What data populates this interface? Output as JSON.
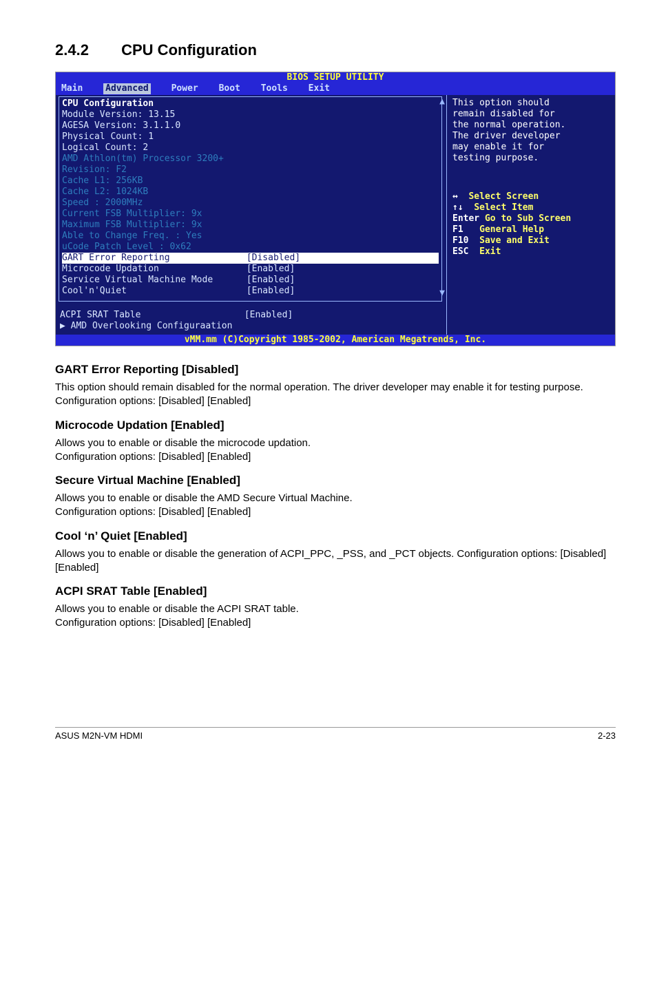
{
  "section": {
    "number": "2.4.2",
    "title": "CPU Configuration"
  },
  "bios": {
    "title": "BIOS SETUP UTILITY",
    "menus": [
      "Main",
      "Advanced",
      "Power",
      "Boot",
      "Tools",
      "Exit"
    ],
    "selected_menu": "Advanced",
    "left": {
      "box_header": "CPU Configuration",
      "static_lines": [
        "Module Version: 13.15",
        "AGESA Version: 3.1.1.0",
        "Physical Count: 1",
        "Logical Count: 2"
      ],
      "dim_lines": [
        "AMD Athlon(tm) Processor 3200+",
        "Revision: F2",
        "Cache L1: 256KB",
        "Cache L2: 1024KB",
        "Speed   : 2000MHz",
        "Current FSB Multiplier: 9x",
        "Maximum FSB Multiplier: 9x",
        "Able to Change Freq.  : Yes",
        "uCode Patch Level     : 0x62"
      ],
      "items": [
        {
          "label": "GART Error Reporting",
          "value": "[Disabled]",
          "selected": true
        },
        {
          "label": "Microcode Updation",
          "value": "[Enabled]",
          "selected": false
        },
        {
          "label": "Service Virtual Machine Mode",
          "value": "[Enabled]",
          "selected": false
        },
        {
          "label": "Cool'n'Quiet",
          "value": "[Enabled]",
          "selected": false
        }
      ],
      "below_items": [
        {
          "label": "ACPI SRAT Table",
          "value": "[Enabled]"
        },
        {
          "label": "▶ AMD Overlooking Configuraation",
          "value": ""
        }
      ]
    },
    "right": {
      "help": [
        "This option should",
        "remain disabled for",
        "the normal operation.",
        "The driver developer",
        "may enable it for",
        "testing purpose."
      ],
      "nav": [
        {
          "k": "↔",
          "t": "Select Screen"
        },
        {
          "k": "↑↓",
          "t": "Select Item"
        },
        {
          "k": "Enter",
          "t": "Go to Sub Screen"
        },
        {
          "k": "F1",
          "t": "General Help"
        },
        {
          "k": "F10",
          "t": "Save and Exit"
        },
        {
          "k": "ESC",
          "t": "Exit"
        }
      ]
    },
    "footer": "vMM.mm (C)Copyright 1985-2002, American Megatrends, Inc."
  },
  "subsections": [
    {
      "h": "GART Error Reporting [Disabled]",
      "p": "This option should remain disabled for the normal operation. The driver developer may enable it for testing purpose. Configuration options: [Disabled] [Enabled]"
    },
    {
      "h": "Microcode Updation [Enabled]",
      "p": "Allows you to enable or disable the microcode updation.\nConfiguration options: [Disabled] [Enabled]"
    },
    {
      "h": "Secure Virtual Machine [Enabled]",
      "p": "Allows you to enable or disable the AMD Secure Virtual Machine.\nConfiguration options: [Disabled] [Enabled]"
    },
    {
      "h": "Cool ‘n’ Quiet [Enabled]",
      "p": "Allows you to enable or disable the generation of ACPI_PPC, _PSS, and _PCT objects. Configuration options: [Disabled] [Enabled]"
    },
    {
      "h": "ACPI SRAT Table [Enabled]",
      "p": "Allows you to enable or disable the ACPI SRAT table.\nConfiguration options: [Disabled] [Enabled]"
    }
  ],
  "footer": {
    "left": "ASUS M2N-VM HDMI",
    "right": "2-23"
  }
}
